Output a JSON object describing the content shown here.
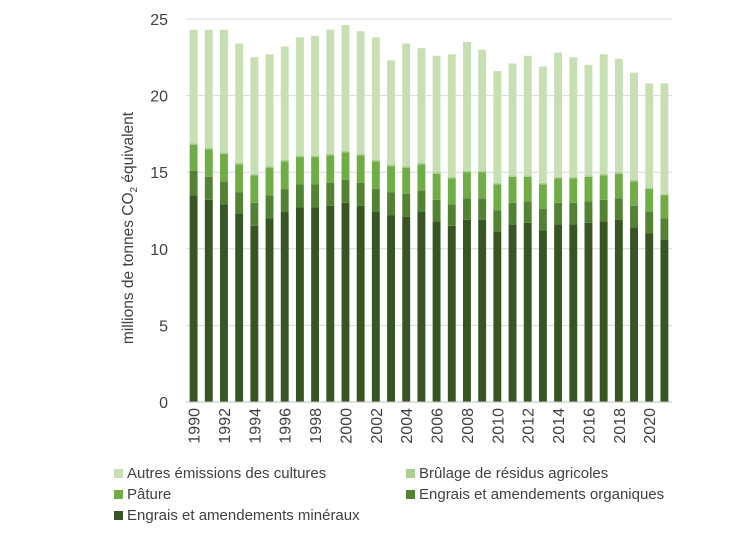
{
  "chart_data": {
    "type": "bar",
    "stacked": true,
    "title": "",
    "xlabel": "",
    "ylabel_main": "millions de tonnes CO",
    "ylabel_sub": "2",
    "ylabel_tail": " équivalent",
    "ylim": [
      0,
      25
    ],
    "yticks": [
      "0",
      "5",
      "10",
      "15",
      "20",
      "25"
    ],
    "grid": "horizontal",
    "legend_position": "bottom",
    "categories": [
      "1990",
      "1991",
      "1992",
      "1993",
      "1994",
      "1995",
      "1996",
      "1997",
      "1998",
      "1999",
      "2000",
      "2001",
      "2002",
      "2003",
      "2004",
      "2005",
      "2006",
      "2007",
      "2008",
      "2009",
      "2010",
      "2011",
      "2012",
      "2013",
      "2014",
      "2015",
      "2016",
      "2017",
      "2018",
      "2019",
      "2020",
      "2021"
    ],
    "xtick_labels": [
      "1990",
      "",
      "1992",
      "",
      "1994",
      "",
      "1996",
      "",
      "1998",
      "",
      "2000",
      "",
      "2002",
      "",
      "2004",
      "",
      "2006",
      "",
      "2008",
      "",
      "2010",
      "",
      "2012",
      "",
      "2014",
      "",
      "2016",
      "",
      "2018",
      "",
      "2020",
      ""
    ],
    "series": [
      {
        "name": "Engrais et amendements minéraux",
        "color": "#375623",
        "values": [
          13.5,
          13.2,
          12.9,
          12.3,
          11.5,
          12.0,
          12.4,
          12.7,
          12.7,
          12.8,
          13.0,
          12.8,
          12.4,
          12.2,
          12.1,
          12.4,
          11.8,
          11.5,
          11.9,
          11.9,
          11.1,
          11.6,
          11.7,
          11.2,
          11.6,
          11.6,
          11.7,
          11.8,
          11.9,
          11.4,
          11.0,
          10.6
        ]
      },
      {
        "name": "Engrais et amendements organiques",
        "color": "#548235",
        "values": [
          1.6,
          1.5,
          1.5,
          1.4,
          1.5,
          1.5,
          1.5,
          1.5,
          1.5,
          1.5,
          1.5,
          1.5,
          1.5,
          1.5,
          1.5,
          1.4,
          1.4,
          1.4,
          1.4,
          1.4,
          1.4,
          1.4,
          1.4,
          1.4,
          1.4,
          1.4,
          1.4,
          1.4,
          1.4,
          1.4,
          1.4,
          1.4
        ]
      },
      {
        "name": "Pâture",
        "color": "#70ad47",
        "values": [
          1.7,
          1.8,
          1.8,
          1.8,
          1.8,
          1.8,
          1.8,
          1.8,
          1.8,
          1.8,
          1.8,
          1.8,
          1.8,
          1.7,
          1.7,
          1.7,
          1.7,
          1.7,
          1.7,
          1.7,
          1.7,
          1.7,
          1.6,
          1.6,
          1.6,
          1.6,
          1.6,
          1.6,
          1.6,
          1.6,
          1.5,
          1.5
        ]
      },
      {
        "name": "Brûlage de résidus agricoles",
        "color": "#a9d08e",
        "values": [
          0.1,
          0.1,
          0.1,
          0.1,
          0.1,
          0.1,
          0.1,
          0.1,
          0.1,
          0.1,
          0.1,
          0.1,
          0.1,
          0.1,
          0.1,
          0.1,
          0.1,
          0.1,
          0.1,
          0.1,
          0.1,
          0.1,
          0.1,
          0.1,
          0.1,
          0.1,
          0.1,
          0.1,
          0.1,
          0.1,
          0.1,
          0.1
        ]
      },
      {
        "name": "Autres émissions des cultures",
        "color": "#c6e0b4",
        "values": [
          7.4,
          7.7,
          8.0,
          7.8,
          7.6,
          7.3,
          7.4,
          7.7,
          7.8,
          8.1,
          8.2,
          8.0,
          8.0,
          6.8,
          8.0,
          7.5,
          7.6,
          8.0,
          8.4,
          7.9,
          7.3,
          7.3,
          7.8,
          7.6,
          8.1,
          7.8,
          7.2,
          7.8,
          7.4,
          7.0,
          6.8,
          7.2
        ]
      }
    ],
    "legend": [
      {
        "label": "Autres émissions des cultures",
        "color": "#c6e0b4"
      },
      {
        "label": "Brûlage de résidus agricoles",
        "color": "#a9d08e"
      },
      {
        "label": "Pâture",
        "color": "#70ad47"
      },
      {
        "label": "Engrais et amendements organiques",
        "color": "#548235"
      },
      {
        "label": "Engrais et amendements minéraux",
        "color": "#375623"
      }
    ]
  }
}
